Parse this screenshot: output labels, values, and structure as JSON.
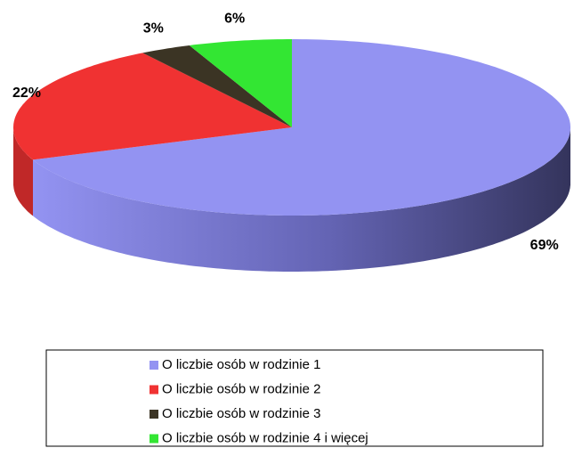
{
  "chart_data": {
    "type": "pie",
    "categories": [
      "O liczbie osób w rodzinie 1",
      "O liczbie osób w rodzinie 2",
      "O liczbie osób w rodzinie 3",
      "O liczbie osób w rodzinie 4 i więcej"
    ],
    "values": [
      69,
      22,
      3,
      6
    ],
    "value_labels": [
      "69%",
      "22%",
      "3%",
      "6%"
    ],
    "colors": [
      "#9393f2",
      "#f03232",
      "#3b3424",
      "#33e633"
    ],
    "legend": "bottom"
  }
}
